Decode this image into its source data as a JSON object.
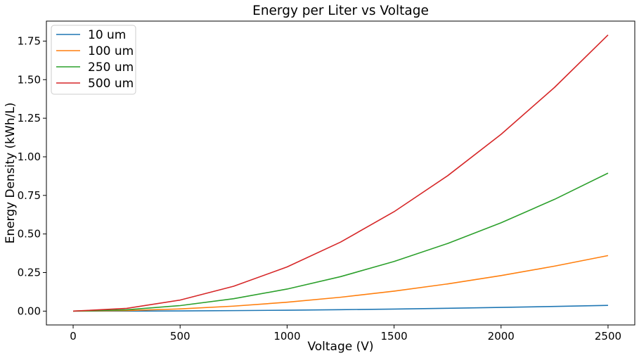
{
  "chart_data": {
    "type": "line",
    "title": "Energy per Liter vs Voltage",
    "xlabel": "Voltage (V)",
    "ylabel": "Energy Density (kWh/L)",
    "xlim": [
      -125,
      2625
    ],
    "ylim": [
      -0.0895,
      1.8795
    ],
    "xticks": [
      0,
      500,
      1000,
      1500,
      2000,
      2500
    ],
    "xtick_labels": [
      "0",
      "500",
      "1000",
      "1500",
      "2000",
      "2500"
    ],
    "yticks": [
      0.0,
      0.25,
      0.5,
      0.75,
      1.0,
      1.25,
      1.5,
      1.75
    ],
    "ytick_labels": [
      "0.00",
      "0.25",
      "0.50",
      "0.75",
      "1.00",
      "1.25",
      "1.50",
      "1.75"
    ],
    "grid": false,
    "legend_position": "top-left",
    "x": [
      0,
      250,
      500,
      750,
      1000,
      1250,
      1500,
      1750,
      2000,
      2250,
      2500
    ],
    "series": [
      {
        "name": "10 um",
        "color": "#1f77b4",
        "values": [
          0,
          0.0004,
          0.0015,
          0.0034,
          0.006,
          0.0094,
          0.0135,
          0.0184,
          0.024,
          0.0304,
          0.0375
        ]
      },
      {
        "name": "100 um",
        "color": "#ff7f0e",
        "values": [
          0,
          0.0036,
          0.0144,
          0.0324,
          0.0576,
          0.09,
          0.1296,
          0.1764,
          0.2304,
          0.2916,
          0.36
        ]
      },
      {
        "name": "250 um",
        "color": "#2ca02c",
        "values": [
          0,
          0.0089,
          0.0358,
          0.0805,
          0.1431,
          0.2236,
          0.322,
          0.4383,
          0.5725,
          0.7245,
          0.8945
        ]
      },
      {
        "name": "500 um",
        "color": "#d62728",
        "values": [
          0,
          0.0179,
          0.0716,
          0.1611,
          0.2864,
          0.4475,
          0.6444,
          0.8771,
          1.1456,
          1.4499,
          1.79
        ]
      }
    ]
  }
}
